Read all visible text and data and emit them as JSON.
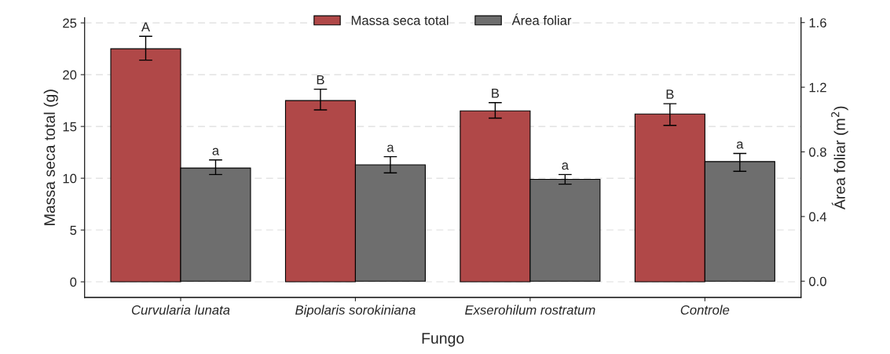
{
  "chart_data": {
    "type": "bar",
    "xlabel": "Fungo",
    "ylabel": "Massa seca total (g)",
    "y2label": "Área foliar (m$^{2}$)",
    "categories": [
      "Curvularia lunata",
      "Bipolaris sorokiniana",
      "Exserohilum rostratum",
      "Controle"
    ],
    "series": [
      {
        "name": "Massa seca total",
        "color": "#b04848",
        "values": [
          22.5,
          17.5,
          16.5,
          16.2
        ],
        "errors": [
          [
            21.4,
            23.7
          ],
          [
            16.6,
            18.6
          ],
          [
            15.8,
            17.3
          ],
          [
            15.1,
            17.2
          ]
        ]
      },
      {
        "name": "Área foliar",
        "color": "#6e6e6e",
        "axis": "y2",
        "values": [
          0.7,
          0.72,
          0.63,
          0.74
        ],
        "errors": [
          [
            0.66,
            0.75
          ],
          [
            0.67,
            0.77
          ],
          [
            0.6,
            0.66
          ],
          [
            0.68,
            0.79
          ]
        ]
      }
    ],
    "ylim": [
      -1.5,
      25.5
    ],
    "yticks": [
      0,
      5,
      10,
      15,
      20,
      25
    ],
    "y2lim": [
      -0.1,
      1.63
    ],
    "y2ticks": [
      {
        "value": 0,
        "label": "0.0"
      },
      {
        "value": 0.4,
        "label": "0.4"
      },
      {
        "value": 0.8,
        "label": "0.8"
      },
      {
        "value": 1.2,
        "label": "1.2"
      },
      {
        "value": 1.6,
        "label": "1.6"
      }
    ],
    "annotations": [
      "A",
      "B",
      "B",
      "B",
      "a",
      "a",
      "a",
      "a"
    ],
    "grid": "y",
    "legend": "top"
  }
}
